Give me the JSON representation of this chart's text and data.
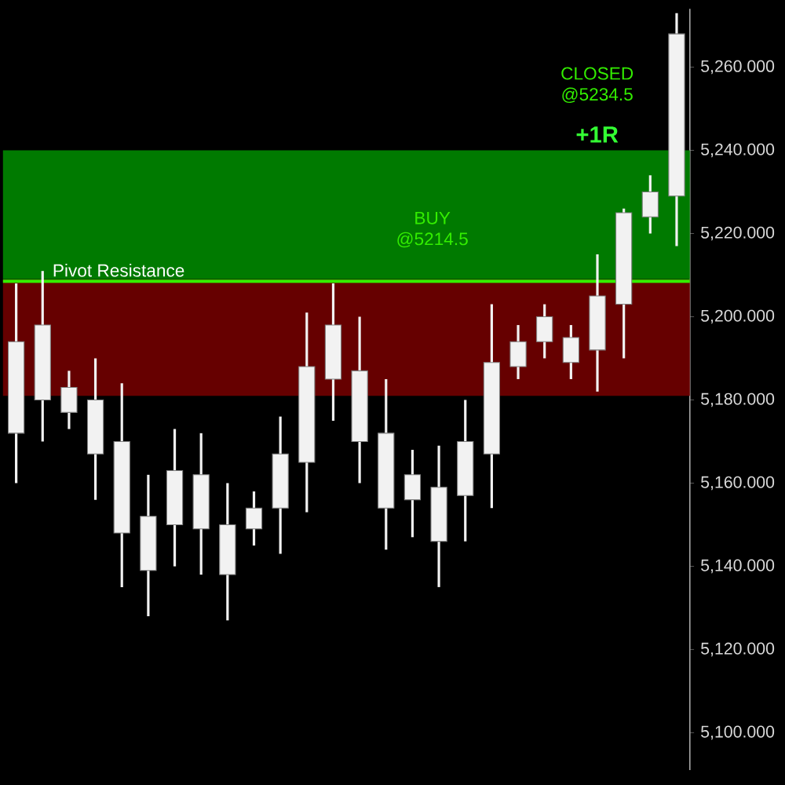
{
  "chart_data": {
    "type": "candlestick",
    "color": "#f2f2f2",
    "categories": [
      null,
      null,
      null,
      null,
      null,
      null,
      null,
      null,
      null,
      null,
      null,
      null,
      null,
      null,
      null,
      null,
      null,
      null,
      null,
      null,
      null,
      null,
      null,
      null,
      null,
      null
    ],
    "ohlc": [
      [
        5172,
        5208,
        5160,
        5194
      ],
      [
        5180,
        5211,
        5170,
        5198
      ],
      [
        5177,
        5187,
        5173,
        5183
      ],
      [
        5167,
        5190,
        5156,
        5180
      ],
      [
        5148,
        5184,
        5135,
        5170
      ],
      [
        5139,
        5162,
        5128,
        5152
      ],
      [
        5150,
        5173,
        5140,
        5163
      ],
      [
        5149,
        5172,
        5138,
        5162
      ],
      [
        5138,
        5160,
        5127,
        5150
      ],
      [
        5149,
        5158,
        5145,
        5154
      ],
      [
        5154,
        5176,
        5143,
        5167
      ],
      [
        5165,
        5201,
        5153,
        5188
      ],
      [
        5185,
        5208,
        5175,
        5198
      ],
      [
        5170,
        5200,
        5160,
        5187
      ],
      [
        5154,
        5185,
        5144,
        5172
      ],
      [
        5156,
        5168,
        5147,
        5162
      ],
      [
        5146,
        5169,
        5135,
        5159
      ],
      [
        5157,
        5180,
        5146,
        5170
      ],
      [
        5167,
        5203,
        5154,
        5189
      ],
      [
        5188,
        5198,
        5185,
        5194
      ],
      [
        5194,
        5203,
        5190,
        5200
      ],
      [
        5189,
        5198,
        5185,
        5195
      ],
      [
        5192,
        5215,
        5182,
        5205
      ],
      [
        5203,
        5226,
        5190,
        5225
      ],
      [
        5224,
        5234,
        5220,
        5230
      ],
      [
        5229,
        5273,
        5217,
        5268
      ]
    ],
    "ylim": [
      5091,
      5274
    ],
    "yticks": [
      {
        "value": 5100,
        "label": "5,100.000"
      },
      {
        "value": 5120,
        "label": "5,120.000"
      },
      {
        "value": 5140,
        "label": "5,140.000"
      },
      {
        "value": 5160,
        "label": "5,160.000"
      },
      {
        "value": 5180,
        "label": "5,180.000"
      },
      {
        "value": 5200,
        "label": "5,200.000"
      },
      {
        "value": 5220,
        "label": "5,220.000"
      },
      {
        "value": 5240,
        "label": "5,240.000"
      },
      {
        "value": 5260,
        "label": "5,260.000"
      }
    ],
    "ref_lines": [
      {
        "axis": "y",
        "value": 5208.5,
        "label": "Pivot Resistance",
        "color": "#33ee00"
      }
    ],
    "bands": [
      {
        "axis": "y",
        "from": 5209,
        "to": 5240,
        "color": "#007a00"
      },
      {
        "axis": "y",
        "from": 5181,
        "to": 5209,
        "color": "#660000"
      }
    ],
    "annotations": [
      "BUY @5214.5",
      "CLOSED @5234.5",
      "+1R"
    ],
    "grid": false
  }
}
